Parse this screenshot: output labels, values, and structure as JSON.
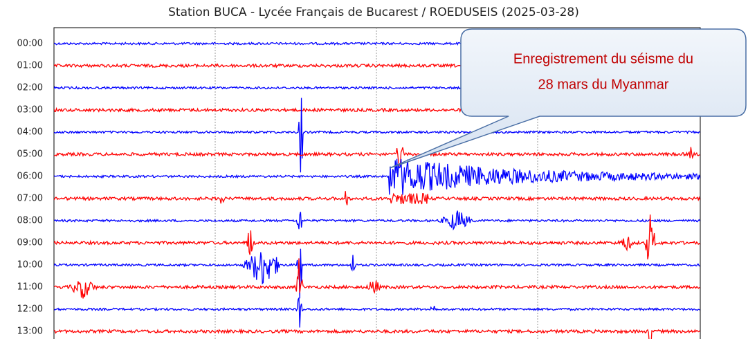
{
  "title": "Station BUCA -  Lycée Français de Bucarest / ROEDUSEIS (2025-03-28)",
  "rows": [
    "00:00",
    "01:00",
    "02:00",
    "03:00",
    "04:00",
    "05:00",
    "06:00",
    "07:00",
    "08:00",
    "09:00",
    "10:00",
    "11:00",
    "12:00",
    "13:00"
  ],
  "callout": [
    "Enregistrement du séisme du",
    "28 mars du Myanmar"
  ]
}
